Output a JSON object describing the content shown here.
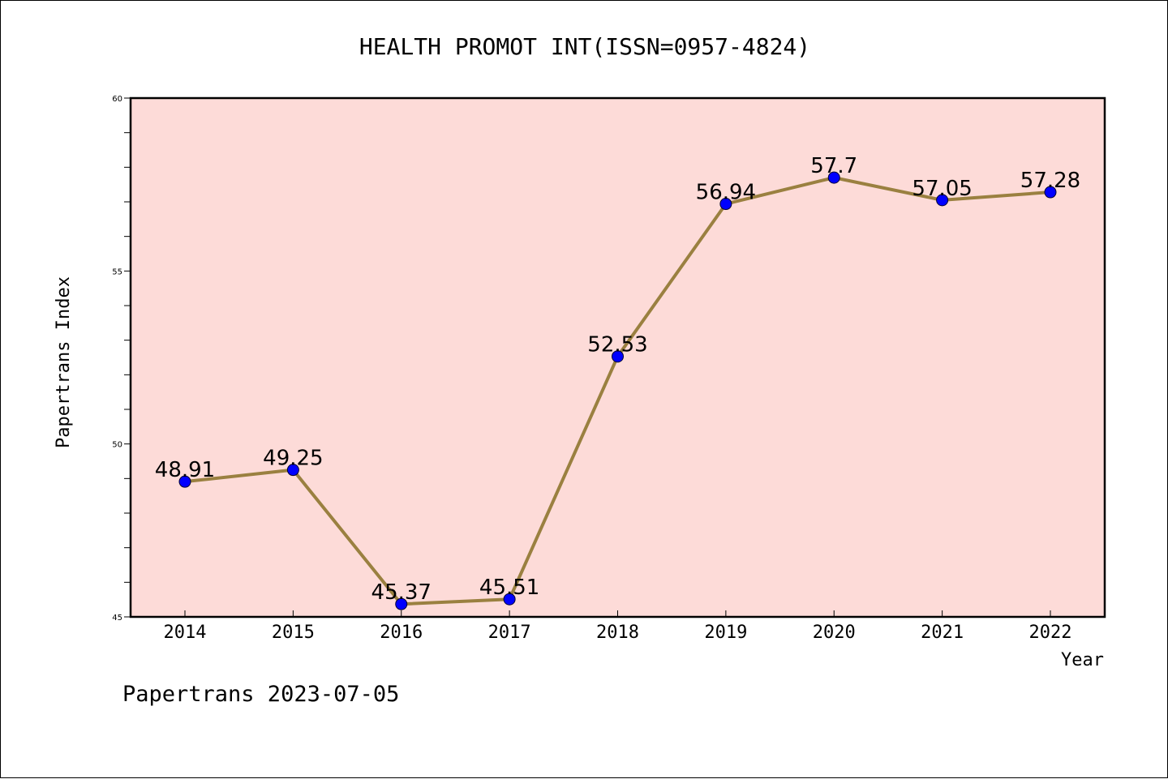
{
  "chart_data": {
    "type": "line",
    "title": "HEALTH PROMOT INT(ISSN=0957-4824)",
    "xlabel": "Year",
    "ylabel": "Papertrans Index",
    "categories": [
      "2014",
      "2015",
      "2016",
      "2017",
      "2018",
      "2019",
      "2020",
      "2021",
      "2022"
    ],
    "series": [
      {
        "values": [
          48.91,
          49.25,
          45.37,
          45.51,
          52.53,
          56.94,
          57.7,
          57.05,
          57.28
        ],
        "labels": [
          "48.91",
          "49.25",
          "45.37",
          "45.51",
          "52.53",
          "56.94",
          "57.7",
          "57.05",
          "57.28"
        ]
      }
    ],
    "ylim": [
      45,
      60
    ],
    "yticks": [
      "45",
      "50",
      "55",
      "60"
    ],
    "grid": false,
    "footer": "Papertrans 2023-07-05",
    "colors": {
      "plot_background": "#fddbd8",
      "line": "#9a8040",
      "marker": "#0000ff",
      "axis": "#000000"
    }
  }
}
